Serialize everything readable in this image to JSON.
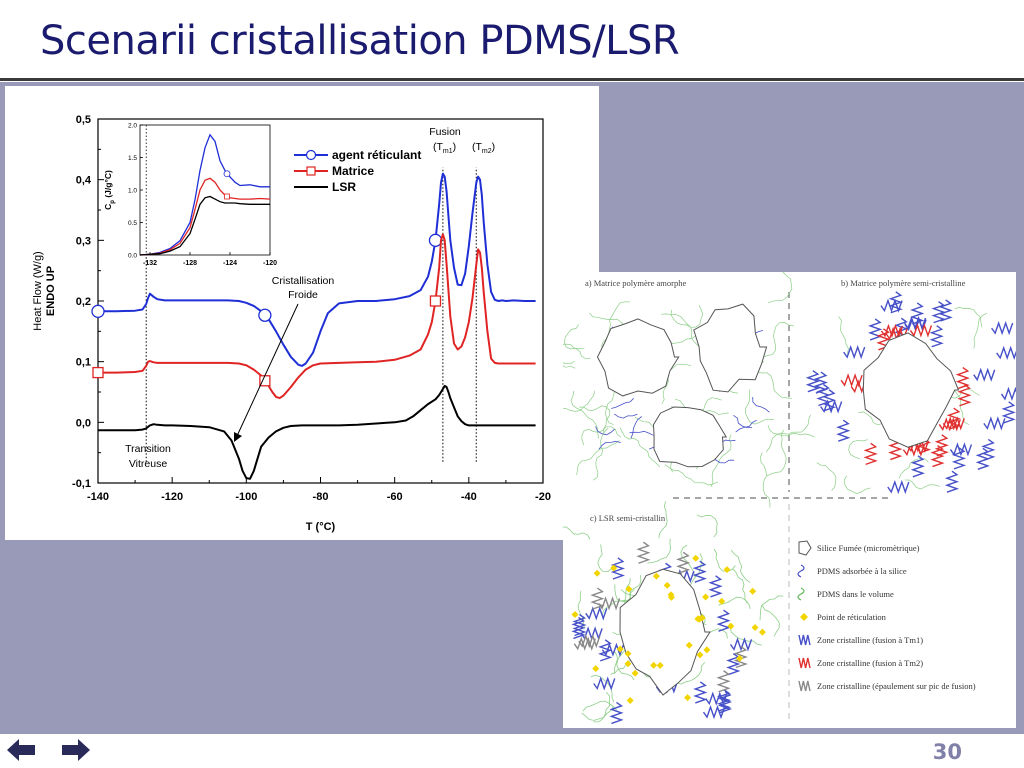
{
  "slide": {
    "title": "Scenarii cristallisation PDMS/LSR",
    "page_number": "30",
    "nav": {
      "prev": "previous-slide",
      "next": "next-slide"
    }
  },
  "colors": {
    "title": "#1a1a6e",
    "panel_bg": "#9999b8",
    "agent": "#1f2fd6",
    "matrice": "#e02424",
    "lsr": "#000000",
    "green_chain": "#8ccf86",
    "blue_zone": "#4650c8",
    "red_zone": "#e03030",
    "reticulation": "#f2d500"
  },
  "chart_data": [
    {
      "type": "line",
      "xlabel": "T (°C)",
      "ylabel_line1": "Heat Flow (W/g)",
      "ylabel_line2": "ENDO UP",
      "xlim": [
        -140,
        -20
      ],
      "ylim": [
        -0.1,
        0.5
      ],
      "xticks": [
        "-140",
        "-120",
        "-100",
        "-80",
        "-60",
        "-40",
        "-20"
      ],
      "yticks": [
        "-0,1",
        "0,0",
        "0,1",
        "0,2",
        "0,3",
        "0,4",
        "0,5"
      ],
      "legend": [
        "agent réticulant",
        "Matrice",
        "LSR"
      ],
      "legend_position": "top-center",
      "annotations": {
        "fusion": "Fusion",
        "tm1": "(T",
        "tm1_sub": "m1",
        "tm2": "(T",
        "tm2_sub": "m2",
        "close": ")",
        "cristallisation_1": "Cristallisation",
        "cristallisation_2": "Froide",
        "transition_1": "Transition",
        "transition_2": "Vitreuse"
      },
      "vlines": [
        -127,
        -47,
        -38
      ],
      "series": [
        {
          "name": "agent réticulant",
          "color": "#1f2fd6",
          "marker": "circle",
          "x": [
            -140,
            -135,
            -130,
            -128,
            -127,
            -126.5,
            -126,
            -125,
            -124,
            -122,
            -120,
            -115,
            -110,
            -105,
            -102,
            -100,
            -98,
            -96,
            -94,
            -92,
            -90,
            -88,
            -86,
            -85,
            -84,
            -82,
            -80,
            -78,
            -75,
            -70,
            -65,
            -60,
            -56,
            -53,
            -51,
            -50,
            -49,
            -48,
            -47.5,
            -47,
            -46.5,
            -46,
            -45,
            -44,
            -43,
            -42,
            -41,
            -40,
            -39,
            -38,
            -37.5,
            -37,
            -36.5,
            -36,
            -35,
            -34,
            -33,
            -32,
            -31,
            -30,
            -28,
            -25,
            -22
          ],
          "y": [
            0.183,
            0.183,
            0.184,
            0.186,
            0.195,
            0.205,
            0.212,
            0.207,
            0.203,
            0.201,
            0.201,
            0.201,
            0.201,
            0.201,
            0.2,
            0.197,
            0.192,
            0.183,
            0.17,
            0.15,
            0.128,
            0.108,
            0.095,
            0.093,
            0.097,
            0.115,
            0.15,
            0.18,
            0.196,
            0.2,
            0.2,
            0.203,
            0.208,
            0.218,
            0.24,
            0.265,
            0.3,
            0.36,
            0.395,
            0.41,
            0.405,
            0.38,
            0.3,
            0.255,
            0.227,
            0.226,
            0.245,
            0.29,
            0.345,
            0.395,
            0.405,
            0.4,
            0.375,
            0.33,
            0.26,
            0.215,
            0.202,
            0.2,
            0.201,
            0.2,
            0.201,
            0.2,
            0.2
          ],
          "markers_x": [
            -140,
            -95,
            -49
          ]
        },
        {
          "name": "Matrice",
          "color": "#e02424",
          "marker": "square",
          "x": [
            -140,
            -135,
            -130,
            -128,
            -127,
            -126.5,
            -126,
            -125,
            -124,
            -122,
            -120,
            -115,
            -110,
            -105,
            -102,
            -100,
            -98,
            -96,
            -94,
            -93,
            -92,
            -91,
            -90,
            -88,
            -86,
            -84,
            -82,
            -80,
            -75,
            -70,
            -65,
            -60,
            -56,
            -53,
            -51,
            -50,
            -49,
            -48,
            -47.5,
            -47,
            -46.5,
            -46,
            -45,
            -44,
            -43,
            -42,
            -41,
            -40,
            -39,
            -38,
            -37.5,
            -37,
            -36.5,
            -36,
            -35,
            -34,
            -33,
            -32,
            -30,
            -28,
            -25,
            -22
          ],
          "y": [
            0.082,
            0.082,
            0.083,
            0.085,
            0.093,
            0.1,
            0.101,
            0.099,
            0.098,
            0.098,
            0.098,
            0.098,
            0.098,
            0.098,
            0.097,
            0.094,
            0.087,
            0.077,
            0.06,
            0.05,
            0.042,
            0.04,
            0.044,
            0.058,
            0.074,
            0.087,
            0.094,
            0.097,
            0.098,
            0.099,
            0.1,
            0.103,
            0.11,
            0.12,
            0.145,
            0.165,
            0.2,
            0.255,
            0.3,
            0.31,
            0.3,
            0.26,
            0.175,
            0.13,
            0.12,
            0.125,
            0.14,
            0.165,
            0.205,
            0.26,
            0.285,
            0.28,
            0.255,
            0.215,
            0.15,
            0.105,
            0.098,
            0.097,
            0.097,
            0.097,
            0.097,
            0.097
          ],
          "markers_x": [
            -140,
            -95,
            -49
          ]
        },
        {
          "name": "LSR",
          "color": "#000000",
          "marker": "",
          "x": [
            -140,
            -135,
            -130,
            -128,
            -127,
            -126,
            -125,
            -124,
            -122,
            -120,
            -115,
            -110,
            -106,
            -104,
            -102,
            -101,
            -100,
            -99,
            -98,
            -97,
            -96,
            -94,
            -92,
            -90,
            -88,
            -85,
            -80,
            -75,
            -70,
            -65,
            -60,
            -57,
            -55,
            -53,
            -51,
            -49,
            -48,
            -47,
            -46.5,
            -46,
            -45.5,
            -45,
            -44,
            -43,
            -42,
            -41,
            -40,
            -38,
            -35,
            -30,
            -25,
            -22
          ],
          "y": [
            -0.013,
            -0.013,
            -0.013,
            -0.012,
            -0.01,
            -0.005,
            -0.003,
            -0.004,
            -0.005,
            -0.005,
            -0.006,
            -0.008,
            -0.015,
            -0.03,
            -0.06,
            -0.08,
            -0.092,
            -0.093,
            -0.08,
            -0.06,
            -0.04,
            -0.025,
            -0.015,
            -0.009,
            -0.006,
            -0.005,
            -0.005,
            -0.005,
            -0.004,
            -0.002,
            0.0,
            0.003,
            0.01,
            0.02,
            0.03,
            0.038,
            0.045,
            0.055,
            0.06,
            0.058,
            0.05,
            0.04,
            0.025,
            0.01,
            0.002,
            -0.003,
            -0.005,
            -0.005,
            -0.005,
            -0.005,
            -0.005,
            -0.005
          ]
        }
      ]
    },
    {
      "type": "line",
      "xlabel": "",
      "ylabel": "C",
      "ylabel_sub": "p",
      "ylabel_rest": "(J/g°C)",
      "xlim": [
        -133,
        -120
      ],
      "ylim": [
        0,
        2.0
      ],
      "xticks": [
        "-132",
        "-128",
        "-124",
        "-120"
      ],
      "yticks": [
        "0.0",
        "0.5",
        "1.0",
        "1.5",
        "2.0"
      ],
      "series": [
        {
          "name": "agent réticulant",
          "color": "#1f2fd6",
          "x": [
            -133,
            -132,
            -131,
            -130,
            -129,
            -128,
            -127.5,
            -127,
            -126.5,
            -126,
            -125.5,
            -125,
            -124.5,
            -124,
            -123.5,
            -123,
            -122,
            -121,
            -120
          ],
          "y": [
            0.0,
            0.01,
            0.04,
            0.1,
            0.22,
            0.5,
            0.85,
            1.3,
            1.65,
            1.85,
            1.75,
            1.45,
            1.3,
            1.2,
            1.12,
            1.07,
            1.08,
            1.05,
            1.05
          ]
        },
        {
          "name": "Matrice",
          "color": "#e02424",
          "x": [
            -133,
            -132,
            -131,
            -130,
            -129,
            -128,
            -127.5,
            -127,
            -126.5,
            -126,
            -125.5,
            -125,
            -124.5,
            -124,
            -123.5,
            -123,
            -122,
            -121,
            -120
          ],
          "y": [
            0.0,
            0.01,
            0.03,
            0.08,
            0.18,
            0.42,
            0.7,
            1.0,
            1.15,
            1.18,
            1.12,
            1.0,
            0.92,
            0.88,
            0.87,
            0.86,
            0.86,
            0.87,
            0.86
          ]
        },
        {
          "name": "LSR",
          "color": "#000000",
          "x": [
            -133,
            -132,
            -131,
            -130,
            -129,
            -128,
            -127.5,
            -127,
            -126.5,
            -126,
            -125.5,
            -125,
            -124.5,
            -124,
            -123.5,
            -123,
            -122,
            -121,
            -120
          ],
          "y": [
            0.0,
            0.01,
            0.02,
            0.06,
            0.13,
            0.33,
            0.55,
            0.78,
            0.88,
            0.9,
            0.86,
            0.82,
            0.8,
            0.8,
            0.8,
            0.79,
            0.78,
            0.78,
            0.78
          ]
        }
      ]
    }
  ],
  "schema": {
    "panel_a": "a) Matrice polymère amorphe",
    "panel_b": "b) Matrice polymère semi-cristalline",
    "panel_c": "c) LSR semi-cristallin",
    "legend": [
      {
        "icon": "silica-particle-icon",
        "label": "Silice Fumée (micromètrique)"
      },
      {
        "icon": "adsorbed-pdms-icon",
        "label": "PDMS adsorbée à la silice"
      },
      {
        "icon": "volume-pdms-icon",
        "label": "PDMS dans le volume"
      },
      {
        "icon": "reticulation-point-icon",
        "label": "Point de réticulation"
      },
      {
        "icon": "blue-crystal-zone-icon",
        "label": "Zone cristalline (fusion à Tm1)"
      },
      {
        "icon": "red-crystal-zone-icon",
        "label": "Zone cristalline (fusion à Tm2)"
      },
      {
        "icon": "grey-crystal-zone-icon",
        "label": "Zone cristalline (épaulement sur pic de fusion)"
      }
    ]
  }
}
